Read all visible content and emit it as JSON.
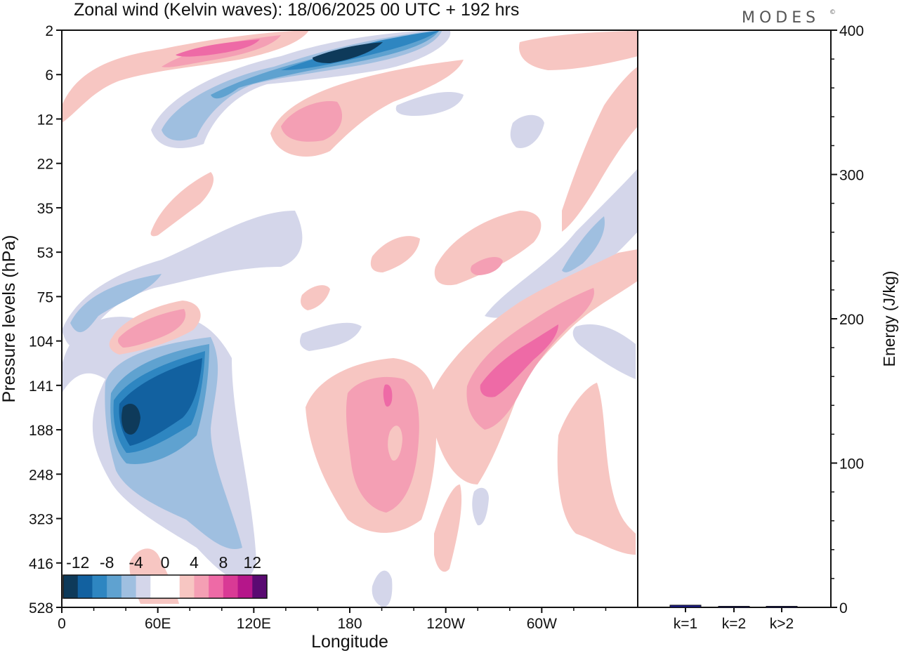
{
  "header": {
    "title": "Zonal wind (Kelvin waves):  18/06/2025  00 UTC  + 192 hrs",
    "brand": "MODES",
    "brand_mark": "©"
  },
  "colors": {
    "scale": [
      "#0e3a5a",
      "#1261a0",
      "#2e86c1",
      "#5fa2d0",
      "#9fbfe0",
      "#d4d6ea",
      "#ffffff",
      "#ffffff",
      "#f7c6c2",
      "#f49fb4",
      "#ee6aa6",
      "#d93a95",
      "#b5168a",
      "#5a0a72"
    ],
    "energy_bar": "#1a1a8c",
    "axis": "#111111"
  },
  "legend": {
    "tick_labels": [
      "-12",
      "-8",
      "-4",
      "0",
      "4",
      "8",
      "12"
    ]
  },
  "chart_data": [
    {
      "type": "heatmap",
      "title": "Zonal wind (Kelvin waves):  18/06/2025  00 UTC  + 192 hrs",
      "xlabel": "Longitude",
      "ylabel": "Pressure levels (hPa)",
      "x_ticks": [
        "0",
        "60E",
        "120E",
        "180",
        "120W",
        "60W"
      ],
      "y_ticks": [
        "2",
        "6",
        "12",
        "22",
        "35",
        "53",
        "75",
        "104",
        "141",
        "188",
        "248",
        "323",
        "416",
        "528"
      ],
      "xlim": [
        0,
        360
      ],
      "contour_levels": [
        -12,
        -10,
        -8,
        -6,
        -4,
        -2,
        0,
        2,
        4,
        6,
        8,
        10,
        12
      ],
      "features": [
        {
          "lon": 58,
          "level": "188",
          "value": -13
        },
        {
          "lon": 55,
          "level": "141",
          "value": -10
        },
        {
          "lon": 35,
          "level": "104",
          "value": -6
        },
        {
          "lon": 165,
          "level": "6",
          "value": -12
        },
        {
          "lon": 120,
          "level": "6",
          "value": -6
        },
        {
          "lon": 70,
          "level": "12",
          "value": -4
        },
        {
          "lon": 330,
          "level": "53",
          "value": -4
        },
        {
          "lon": 85,
          "level": "104",
          "value": 6
        },
        {
          "lon": 195,
          "level": "188",
          "value": 8
        },
        {
          "lon": 268,
          "level": "141",
          "value": 8
        },
        {
          "lon": 172,
          "level": "12",
          "value": 4
        },
        {
          "lon": 90,
          "level": "2",
          "value": 6
        }
      ]
    },
    {
      "type": "bar",
      "categories": [
        "k=1",
        "k=2",
        "k>2"
      ],
      "values": [
        1.5,
        0.4,
        0.3
      ],
      "ylabel": "Energy (J/kg)",
      "ylim": [
        0,
        400
      ],
      "y_ticks": [
        "0",
        "100",
        "200",
        "300",
        "400"
      ]
    }
  ]
}
